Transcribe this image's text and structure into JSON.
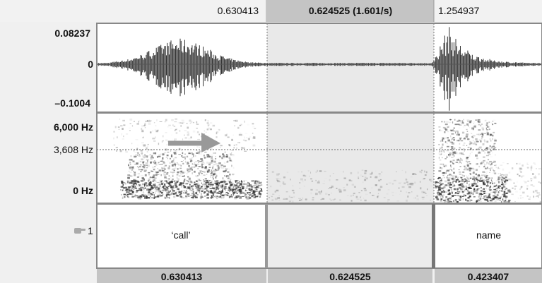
{
  "top_bar": {
    "left_time": "0.630413",
    "selection": "0.624525 (1.601/s)",
    "right_time": "1.254937"
  },
  "waveform": {
    "max": "0.08237",
    "zero": "0",
    "min": "–0.1004"
  },
  "spectrogram": {
    "max": "6,000 Hz",
    "cursor": "3,608 Hz",
    "min": "0 Hz"
  },
  "tier": {
    "number": "1",
    "labels": [
      "‘call’",
      "name"
    ]
  },
  "bottom_bar": {
    "durations": [
      "0.630413",
      "0.624525",
      "0.423407"
    ]
  }
}
